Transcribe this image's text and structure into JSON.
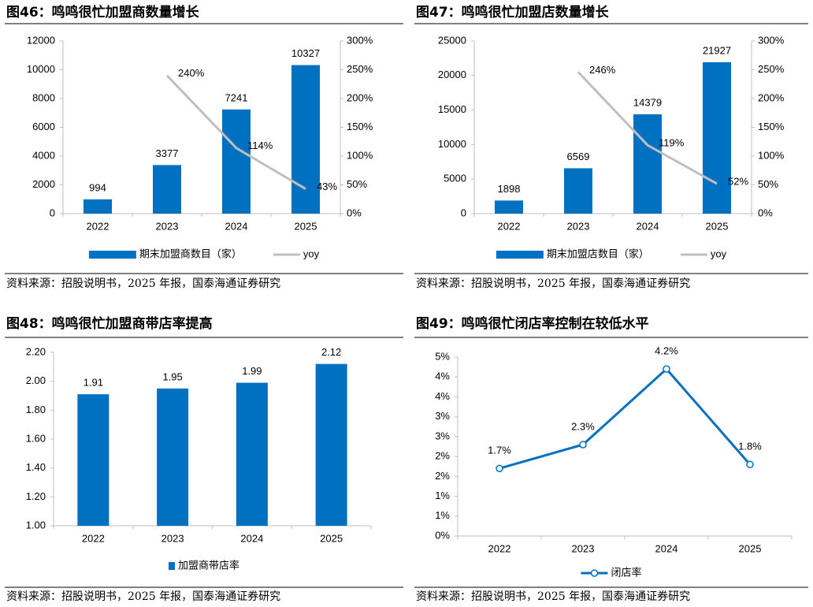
{
  "chart_data": [
    {
      "type": "bar",
      "title": "图46：鸣鸣很忙加盟商数量增长",
      "categories": [
        "2022",
        "2023",
        "2024",
        "2025"
      ],
      "series": [
        {
          "name": "期末加盟商数目（家）",
          "color": "#0070c0",
          "values": [
            994,
            3377,
            7241,
            10327
          ]
        },
        {
          "name": "yoy",
          "color": "#bfbfbf",
          "type": "line",
          "axis": "y2",
          "values": [
            null,
            240,
            114,
            43
          ],
          "value_labels": [
            null,
            "240%",
            "114%",
            "43%"
          ]
        }
      ],
      "ylim": [
        0,
        12000
      ],
      "yticks": [
        0,
        2000,
        4000,
        6000,
        8000,
        10000,
        12000
      ],
      "y2lim": [
        0,
        300
      ],
      "y2ticks": [
        {
          "value": 0,
          "label": "0%"
        },
        {
          "value": 50,
          "label": "50%"
        },
        {
          "value": 100,
          "label": "100%"
        },
        {
          "value": 150,
          "label": "150%"
        },
        {
          "value": 200,
          "label": "200%"
        },
        {
          "value": 250,
          "label": "250%"
        },
        {
          "value": 300,
          "label": "300%"
        }
      ],
      "grid": false,
      "legend": "bottom",
      "source": "资料来源：招股说明书，2025 年报，国泰海通证券研究"
    },
    {
      "type": "bar",
      "title": "图47：鸣鸣很忙加盟店数量增长",
      "categories": [
        "2022",
        "2023",
        "2024",
        "2025"
      ],
      "series": [
        {
          "name": "期末加盟店数目（家）",
          "color": "#0070c0",
          "values": [
            1898,
            6569,
            14379,
            21927
          ]
        },
        {
          "name": "yoy",
          "color": "#bfbfbf",
          "type": "line",
          "axis": "y2",
          "values": [
            null,
            246,
            119,
            52
          ],
          "value_labels": [
            null,
            "246%",
            "119%",
            "52%"
          ]
        }
      ],
      "ylim": [
        0,
        25000
      ],
      "yticks": [
        0,
        5000,
        10000,
        15000,
        20000,
        25000
      ],
      "y2lim": [
        0,
        300
      ],
      "y2ticks": [
        {
          "value": 0,
          "label": "0%"
        },
        {
          "value": 50,
          "label": "50%"
        },
        {
          "value": 100,
          "label": "100%"
        },
        {
          "value": 150,
          "label": "150%"
        },
        {
          "value": 200,
          "label": "200%"
        },
        {
          "value": 250,
          "label": "250%"
        },
        {
          "value": 300,
          "label": "300%"
        }
      ],
      "grid": false,
      "legend": "bottom",
      "source": "资料来源：招股说明书，2025 年报，国泰海通证券研究"
    },
    {
      "type": "bar",
      "title": "图48：鸣鸣很忙加盟商带店率提高",
      "categories": [
        "2022",
        "2023",
        "2024",
        "2025"
      ],
      "series": [
        {
          "name": "加盟商带店率",
          "color": "#0070c0",
          "values": [
            1.91,
            1.95,
            1.99,
            2.12
          ]
        }
      ],
      "ylim": [
        1,
        2.2
      ],
      "yticks": [
        {
          "value": 1,
          "label": "1.00"
        },
        {
          "value": 1.2,
          "label": "1.20"
        },
        {
          "value": 1.4,
          "label": "1.40"
        },
        {
          "value": 1.6,
          "label": "1.60"
        },
        {
          "value": 1.8,
          "label": "1.80"
        },
        {
          "value": 2,
          "label": "2.00"
        },
        {
          "value": 2.2,
          "label": "2.20"
        }
      ],
      "grid": false,
      "legend": "bottom",
      "source": "资料来源：招股说明书，2025 年报，国泰海通证券研究"
    },
    {
      "type": "line",
      "title": "图49：鸣鸣很忙闭店率控制在较低水平",
      "categories": [
        "2022",
        "2023",
        "2024",
        "2025"
      ],
      "series": [
        {
          "name": "闭店率",
          "color": "#0070c0",
          "values": [
            1.7,
            2.3,
            4.2,
            1.8
          ],
          "value_labels": [
            "1.7%",
            "2.3%",
            "4.2%",
            "1.8%"
          ]
        }
      ],
      "ylim": [
        0,
        4.5
      ],
      "yticks": [
        {
          "value": 0,
          "label": "0%"
        },
        {
          "value": 0.5,
          "label": "1%"
        },
        {
          "value": 1,
          "label": "1%"
        },
        {
          "value": 1.5,
          "label": "2%"
        },
        {
          "value": 2,
          "label": "2%"
        },
        {
          "value": 2.5,
          "label": "3%"
        },
        {
          "value": 3,
          "label": "3%"
        },
        {
          "value": 3.5,
          "label": "4%"
        },
        {
          "value": 4,
          "label": "4%"
        },
        {
          "value": 4.5,
          "label": "5%"
        }
      ],
      "grid": false,
      "legend": "bottom",
      "source": "资料来源：招股说明书，2025 年报，国泰海通证券研究"
    }
  ]
}
